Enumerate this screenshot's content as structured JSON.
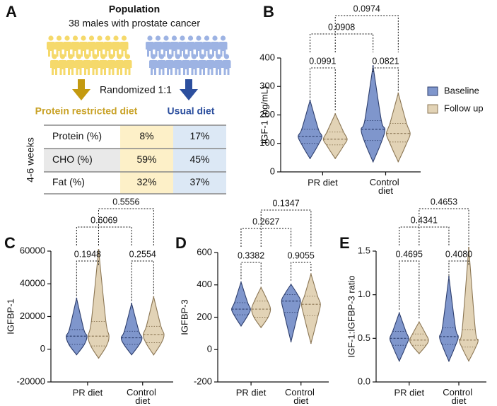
{
  "panel_a": {
    "letter": "A",
    "title": "Population",
    "subtitle": "38 males with prostate cancer",
    "randomization": "Randomized 1:1",
    "arm_1": "Protein restricted diet",
    "arm_2": "Usual diet",
    "duration": "4-6 weeks",
    "table": {
      "rows": [
        [
          "Protein (%)",
          "8%",
          "17%"
        ],
        [
          "CHO (%)",
          "59%",
          "45%"
        ],
        [
          "Fat (%)",
          "32%",
          "37%"
        ]
      ]
    }
  },
  "chart_data": [
    {
      "type": "violin",
      "panel": "B",
      "ylabel": "IGF-1 (ng/mL)",
      "categories": [
        "PR diet",
        "Control diet"
      ],
      "ylim": [
        0,
        400
      ],
      "yticks": [
        0,
        100,
        200,
        300,
        400
      ],
      "legend": "right",
      "series": [
        {
          "name": "Baseline",
          "color": "#7f96cc",
          "edge_color": "#2e3f6e",
          "values": [
            {
              "min": 50,
              "q1": 100,
              "median": 125,
              "q3": 150,
              "max": 245
            },
            {
              "min": 40,
              "q1": 110,
              "median": 150,
              "q3": 180,
              "max": 360
            }
          ]
        },
        {
          "name": "Follow up",
          "color": "#e2d3b6",
          "edge_color": "#8c7755",
          "values": [
            {
              "min": 50,
              "q1": 95,
              "median": 115,
              "q3": 140,
              "max": 200
            },
            {
              "min": 40,
              "q1": 105,
              "median": 135,
              "q3": 170,
              "max": 270
            }
          ]
        }
      ],
      "p_values": [
        "0.0991",
        "0.0821",
        "0.0908",
        "0.0974"
      ]
    },
    {
      "type": "violin",
      "panel": "C",
      "ylabel": "IGFBP-1",
      "categories": [
        "PR diet",
        "Control diet"
      ],
      "ylim": [
        -20000,
        60000
      ],
      "yticks": [
        -20000,
        0,
        20000,
        40000,
        60000
      ],
      "series": [
        {
          "color": "#7f96cc",
          "edge_color": "#2e3f6e",
          "values": [
            {
              "min": -3000,
              "q1": 3000,
              "median": 8000,
              "q3": 12000,
              "max": 30000
            },
            {
              "min": -3000,
              "q1": 3000,
              "median": 7000,
              "q3": 11000,
              "max": 27000
            }
          ]
        },
        {
          "color": "#e2d3b6",
          "edge_color": "#8c7755",
          "values": [
            {
              "min": -5000,
              "q1": 2000,
              "median": 8000,
              "q3": 17000,
              "max": 58000
            },
            {
              "min": -3000,
              "q1": 4000,
              "median": 9000,
              "q3": 14000,
              "max": 31000
            }
          ]
        }
      ],
      "p_values": [
        "0.1948",
        "0.2554",
        "0.6069",
        "0.5556"
      ]
    },
    {
      "type": "violin",
      "panel": "D",
      "ylabel": "IGFBP-3",
      "categories": [
        "PR diet",
        "Control diet"
      ],
      "ylim": [
        -200,
        600
      ],
      "yticks": [
        -200,
        0,
        200,
        400,
        600
      ],
      "series": [
        {
          "color": "#7f96cc",
          "edge_color": "#2e3f6e",
          "values": [
            {
              "min": 150,
              "q1": 215,
              "median": 250,
              "q3": 290,
              "max": 410
            },
            {
              "min": 60,
              "q1": 230,
              "median": 300,
              "q3": 340,
              "max": 400
            }
          ]
        },
        {
          "color": "#e2d3b6",
          "edge_color": "#8c7755",
          "values": [
            {
              "min": 140,
              "q1": 200,
              "median": 250,
              "q3": 300,
              "max": 380
            },
            {
              "min": 50,
              "q1": 210,
              "median": 280,
              "q3": 330,
              "max": 460
            }
          ]
        }
      ],
      "p_values": [
        "0.3382",
        "0.9055",
        "0.2627",
        "0.1347"
      ]
    },
    {
      "type": "violin",
      "panel": "E",
      "ylabel": "IGF-1:IGFBP-3 ratio",
      "categories": [
        "PR diet",
        "Control diet"
      ],
      "ylim": [
        0,
        1.5
      ],
      "yticks": [
        {
          "value": 0,
          "label": "0.0"
        },
        {
          "value": 0.5,
          "label": "0.5"
        },
        {
          "value": 1,
          "label": "1.0"
        },
        {
          "value": 1.5,
          "label": "1.5"
        }
      ],
      "series": [
        {
          "color": "#7f96cc",
          "edge_color": "#2e3f6e",
          "values": [
            {
              "min": 0.25,
              "q1": 0.42,
              "median": 0.5,
              "q3": 0.58,
              "max": 0.78
            },
            {
              "min": 0.25,
              "q1": 0.43,
              "median": 0.52,
              "q3": 0.62,
              "max": 1.17
            }
          ]
        },
        {
          "color": "#e2d3b6",
          "edge_color": "#8c7755",
          "values": [
            {
              "min": 0.33,
              "q1": 0.42,
              "median": 0.48,
              "q3": 0.55,
              "max": 0.68
            },
            {
              "min": 0.25,
              "q1": 0.4,
              "median": 0.48,
              "q3": 0.6,
              "max": 1.48
            }
          ]
        }
      ],
      "p_values": [
        "0.4695",
        "0.4080",
        "0.4341",
        "0.4653"
      ]
    }
  ]
}
